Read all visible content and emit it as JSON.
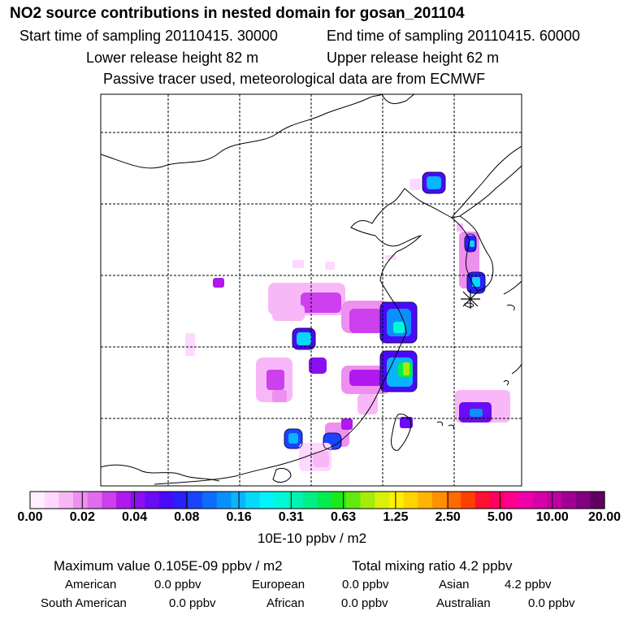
{
  "header": {
    "title": "NO2 source contributions in nested domain for gosan_201104",
    "start_time": "Start time of sampling 20110415. 30000",
    "end_time": "End time of sampling 20110415. 60000",
    "lower_height": "Lower release height   82 m",
    "upper_height": "Upper release height   62 m",
    "tracer_note": "Passive tracer used, meteorological data are from ECMWF"
  },
  "chart_data": {
    "type": "heatmap",
    "title": "NO2 source contributions in nested domain for gosan_201104",
    "colorbar": {
      "ticks": [
        "0.00",
        "0.02",
        "0.04",
        "0.08",
        "0.16",
        "0.31",
        "0.63",
        "1.25",
        "2.50",
        "5.00",
        "10.00",
        "20.00"
      ],
      "colors": [
        "#fff0ff",
        "#ffd8ff",
        "#f8b8f8",
        "#ee90f0",
        "#e06cee",
        "#cc40ee",
        "#b018ee",
        "#8a10f0",
        "#6a0cf4",
        "#4a0af8",
        "#2a20fa",
        "#1a44fc",
        "#0c6cfc",
        "#0a90fc",
        "#08b4fc",
        "#06d8fc",
        "#00f4fa",
        "#00f8d8",
        "#00f4b0",
        "#00f088",
        "#00ec50",
        "#1ce81c",
        "#64e810",
        "#a4ec0c",
        "#d8f00c",
        "#fff000",
        "#ffd400",
        "#ffb400",
        "#ff9000",
        "#ff6a00",
        "#ff4000",
        "#ff1030",
        "#ff0060",
        "#ff0090",
        "#f000a8",
        "#d800a8",
        "#c000a0",
        "#a00090",
        "#800080",
        "#600060"
      ],
      "units": "10E-10 ppbv / m2"
    },
    "grid": true,
    "receptor": "gosan"
  },
  "summary": {
    "max_value": "Maximum value  0.105E-09 ppbv / m2",
    "total_mixing": "Total mixing ratio       4.2 ppbv",
    "american_label": "American",
    "american_value": "0.0 ppbv",
    "european_label": "European",
    "european_value": "0.0 ppbv",
    "asian_label": "Asian",
    "asian_value": "4.2 ppbv",
    "south_american_label": "South American",
    "south_american_value": "0.0 ppbv",
    "african_label": "African",
    "african_value": "0.0 ppbv",
    "australian_label": "Australian",
    "australian_value": "0.0 ppbv"
  }
}
